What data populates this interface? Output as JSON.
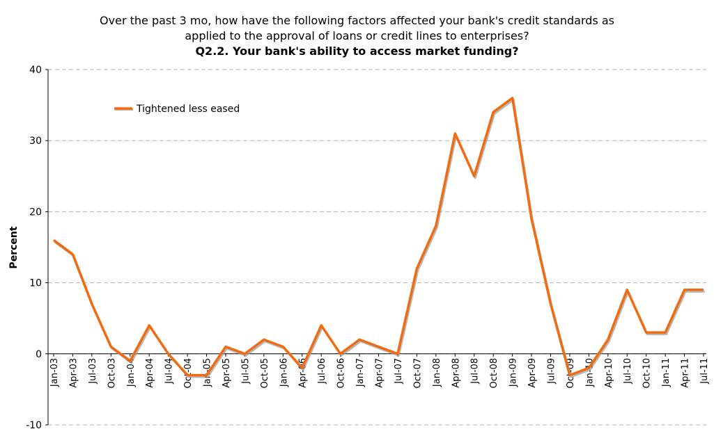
{
  "title": {
    "line1": "Over the past 3 mo, how have the following factors affected your bank's credit standards as",
    "line2": "applied to the approval of loans or credit lines to enterprises?",
    "line3": "Q2.2. Your bank's ability to access market funding?"
  },
  "chart_data": {
    "type": "line",
    "title": "Q2.2. Your bank's ability to access market funding?",
    "xlabel": "",
    "ylabel": "Percent",
    "ylim": [
      -10,
      40
    ],
    "yticks": [
      -10,
      0,
      10,
      20,
      30,
      40
    ],
    "grid": true,
    "legend_position": "top-left",
    "x": [
      "Jan-03",
      "Apr-03",
      "Jul-03",
      "Oct-03",
      "Jan-04",
      "Apr-04",
      "Jul-04",
      "Oct-04",
      "Jan-05",
      "Apr-05",
      "Jul-05",
      "Oct-05",
      "Jan-06",
      "Apr-06",
      "Jul-06",
      "Oct-06",
      "Jan-07",
      "Apr-07",
      "Jul-07",
      "Oct-07",
      "Jan-08",
      "Apr-08",
      "Jul-08",
      "Oct-08",
      "Jan-09",
      "Apr-09",
      "Jul-09",
      "Oct-09",
      "Jan-10",
      "Apr-10",
      "Jul-10",
      "Oct-10",
      "Jan-11",
      "Apr-11",
      "Jul-11"
    ],
    "series": [
      {
        "name": "Tightened less eased",
        "color": "#f26b10",
        "values": [
          16,
          14,
          7,
          1,
          -1,
          4,
          0,
          -3,
          -3,
          1,
          0,
          2,
          1,
          -2,
          4,
          0,
          2,
          1,
          0,
          12,
          18,
          31,
          25,
          34,
          36,
          19,
          7,
          -3,
          -2,
          2,
          9,
          3,
          3,
          9,
          9
        ]
      }
    ]
  }
}
